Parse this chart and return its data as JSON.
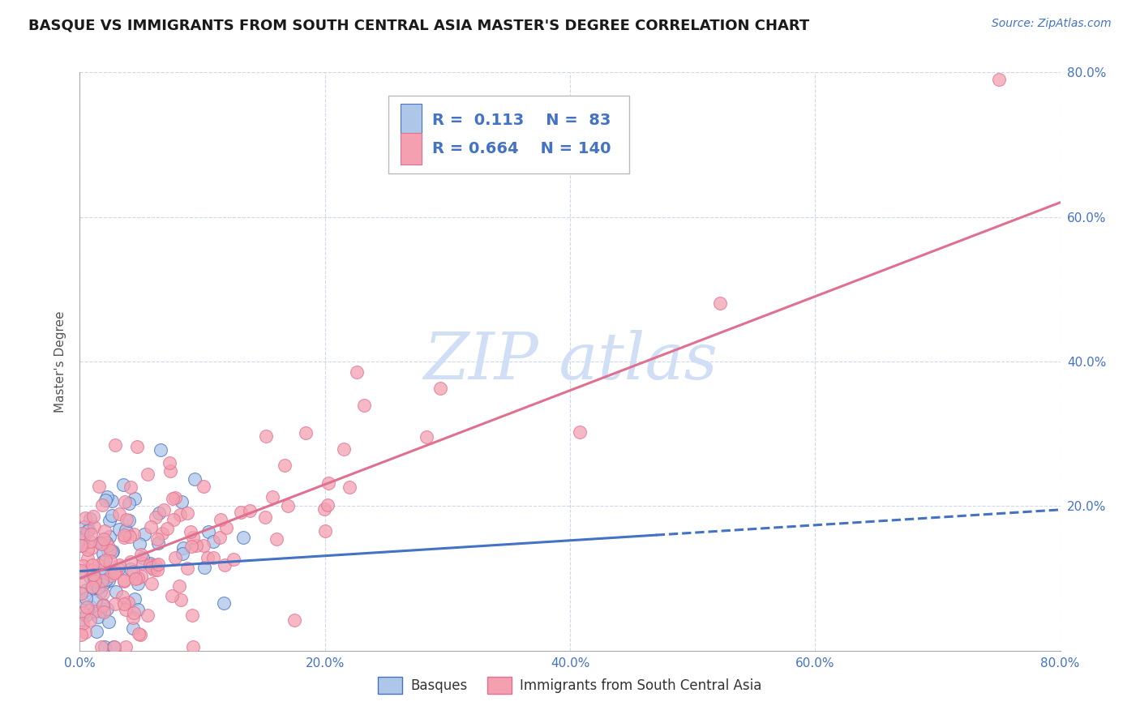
{
  "title": "BASQUE VS IMMIGRANTS FROM SOUTH CENTRAL ASIA MASTER'S DEGREE CORRELATION CHART",
  "source_text": "Source: ZipAtlas.com",
  "ylabel": "Master's Degree",
  "xlim": [
    0.0,
    0.8
  ],
  "ylim": [
    0.0,
    0.8
  ],
  "xtick_vals": [
    0.0,
    0.2,
    0.4,
    0.6,
    0.8
  ],
  "ytick_vals": [
    0.2,
    0.4,
    0.6,
    0.8
  ],
  "blue_line_color": "#4472c4",
  "pink_line_color": "#e07090",
  "blue_scatter_color": "#aec6e8",
  "pink_scatter_color": "#f4a0b0",
  "background_color": "#ffffff",
  "grid_color": "#c8d4e8",
  "watermark_color": "#d0dff5",
  "title_fontsize": 13,
  "axis_label_fontsize": 11,
  "tick_fontsize": 11,
  "R_blue": 0.113,
  "N_blue": 83,
  "R_pink": 0.664,
  "N_pink": 140,
  "blue_line_start_y": 0.11,
  "blue_line_end_y": 0.195,
  "blue_line_x0": 0.0,
  "blue_line_x1": 0.8,
  "pink_line_start_y": 0.1,
  "pink_line_end_y": 0.62,
  "pink_line_x0": 0.0,
  "pink_line_x1": 0.8
}
